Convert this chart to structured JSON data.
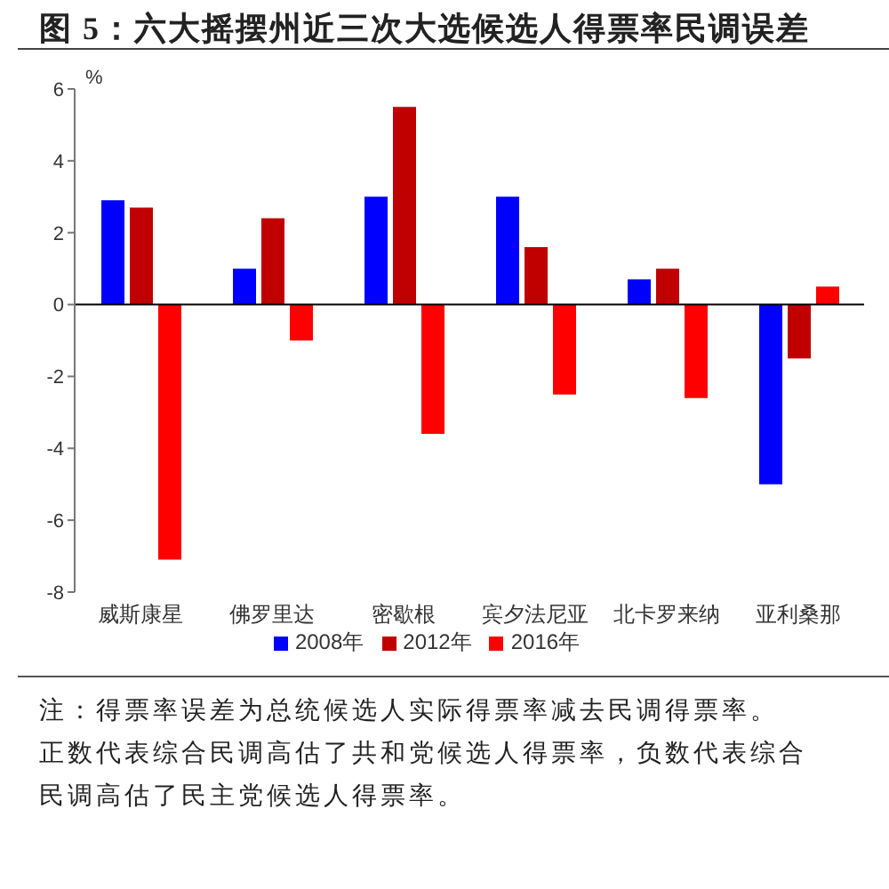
{
  "chart_data": {
    "type": "bar",
    "title": "图 5：六大摇摆州近三次大选候选人得票率民调误差",
    "ylabel": "%",
    "categories": [
      "威斯康星",
      "佛罗里达",
      "密歇根",
      "宾夕法尼亚",
      "北卡罗来纳",
      "亚利桑那"
    ],
    "series": [
      {
        "name": "2008年",
        "color": "#0000ff",
        "values": [
          2.9,
          1.0,
          3.0,
          3.0,
          0.7,
          -5.0
        ]
      },
      {
        "name": "2012年",
        "color": "#c00000",
        "values": [
          2.7,
          2.4,
          5.5,
          1.6,
          1.0,
          -1.5
        ]
      },
      {
        "name": "2016年",
        "color": "#ff0000",
        "values": [
          -7.1,
          -1.0,
          -3.6,
          -2.5,
          -2.6,
          0.5
        ]
      }
    ],
    "ylim": [
      -8,
      6
    ],
    "yticks": [
      -8,
      -6,
      -4,
      -2,
      0,
      2,
      4,
      6
    ],
    "legend": "bottom",
    "annotations": [
      "注：得票率误差为总统候选人实际得票率减去民调得票率。",
      "正数代表综合民调高估了共和党候选人得票率，负数代表综合民调高估了民主党候选人得票率。"
    ]
  }
}
